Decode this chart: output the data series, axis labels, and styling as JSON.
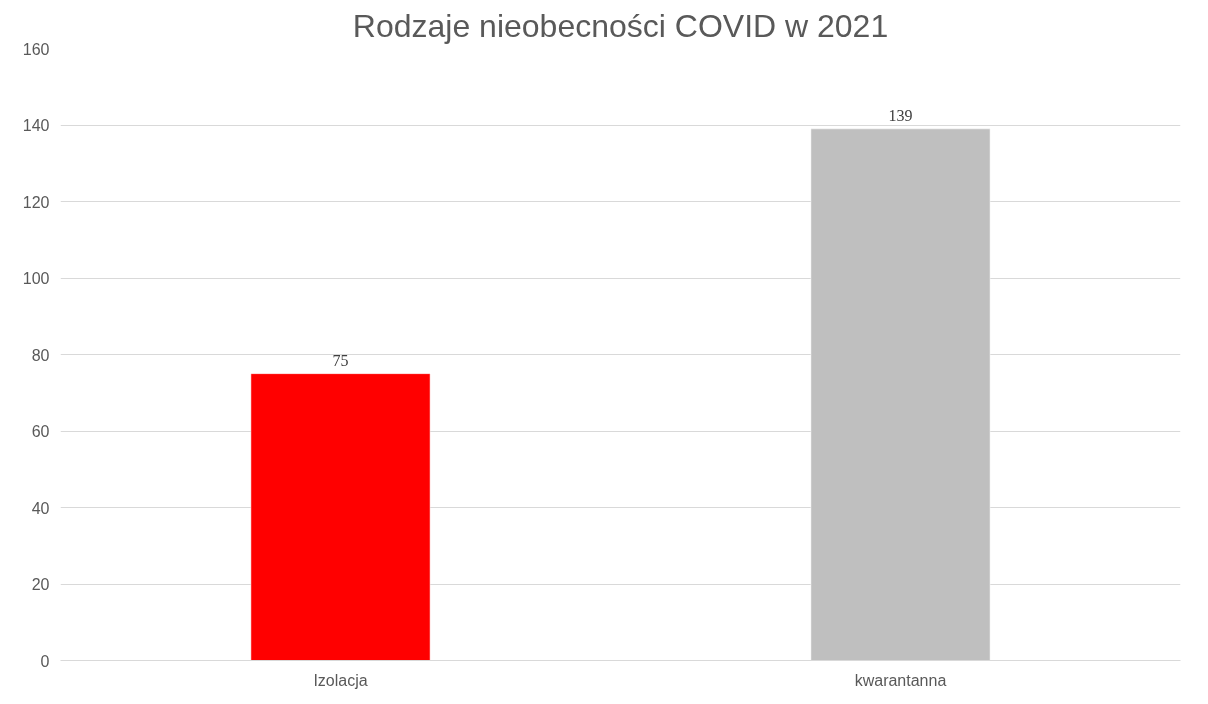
{
  "chart_data": {
    "type": "bar",
    "title": "Rodzaje nieobecności COVID w 2021",
    "categories": [
      "Izolacja",
      "kwarantanna"
    ],
    "values": [
      75,
      139
    ],
    "colors": [
      "#ff0000",
      "#bfbfbf"
    ],
    "ylim": [
      0,
      160
    ],
    "yticks": [
      0,
      20,
      40,
      60,
      80,
      100,
      120,
      140,
      160
    ],
    "grid": "y",
    "data_labels": true
  }
}
